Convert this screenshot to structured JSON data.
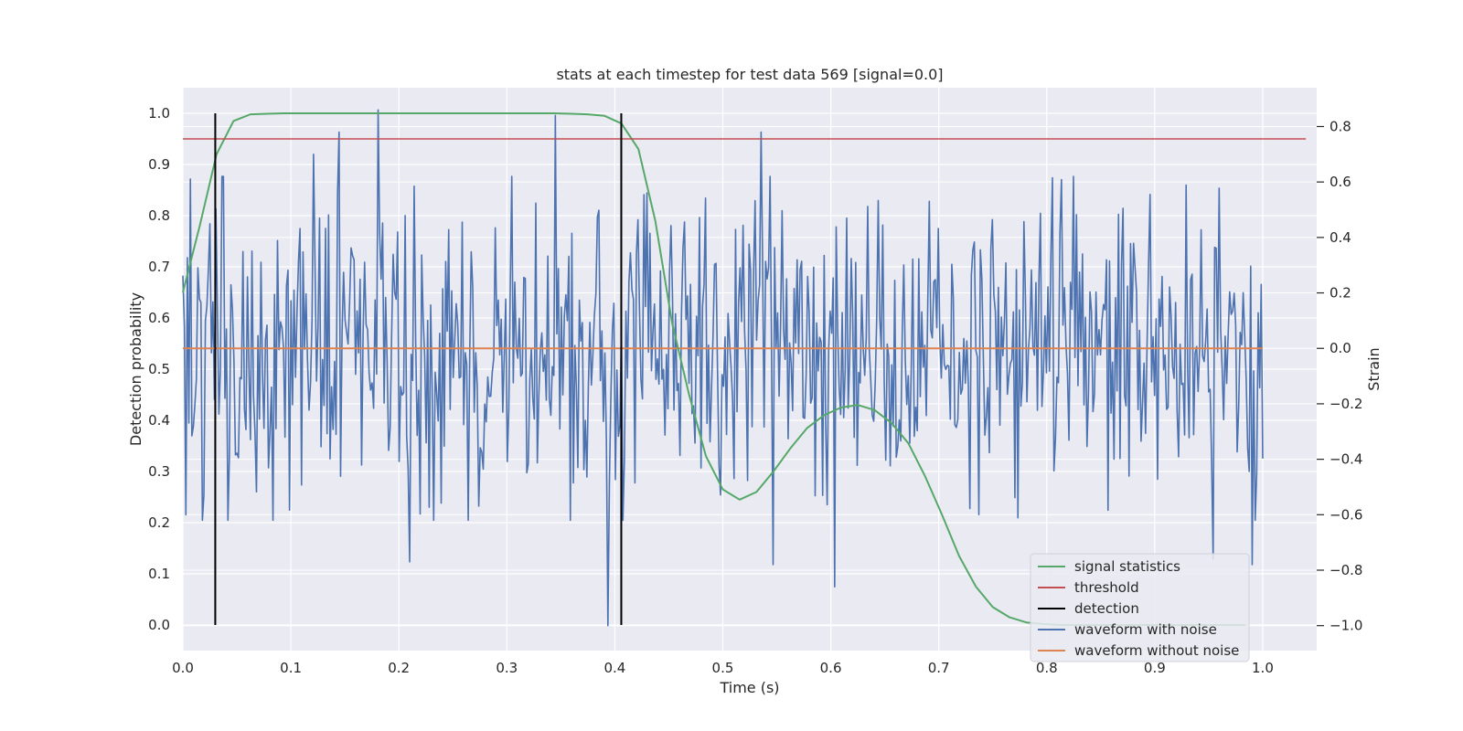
{
  "chart_data": {
    "type": "line",
    "title": "stats at each timestep for test data 569 [signal=0.0]",
    "xlabel": "Time (s)",
    "ylabel": "Detection probability",
    "y2label": "Strain",
    "xlim": [
      0.0,
      1.05
    ],
    "ylim": [
      -0.05,
      1.05
    ],
    "y2lim": [
      -1.09,
      0.94
    ],
    "xticks": [
      0.0,
      0.1,
      0.2,
      0.3,
      0.4,
      0.5,
      0.6,
      0.7,
      0.8,
      0.9,
      1.0
    ],
    "xtick_labels": [
      "0.0",
      "0.1",
      "0.2",
      "0.3",
      "0.4",
      "0.5",
      "0.6",
      "0.7",
      "0.8",
      "0.9",
      "1.0"
    ],
    "yticks": [
      0.0,
      0.1,
      0.2,
      0.3,
      0.4,
      0.5,
      0.6,
      0.7,
      0.8,
      0.9,
      1.0
    ],
    "ytick_labels": [
      "0.0",
      "0.1",
      "0.2",
      "0.3",
      "0.4",
      "0.5",
      "0.6",
      "0.7",
      "0.8",
      "0.9",
      "1.0"
    ],
    "y2ticks": [
      0.8,
      0.6,
      0.4,
      0.2,
      0.0,
      -0.2,
      -0.4,
      -0.6,
      -0.8,
      -1.0
    ],
    "y2tick_labels": [
      "0.8",
      "0.6",
      "0.4",
      "0.2",
      "0.0",
      "−0.2",
      "−0.4",
      "−0.6",
      "−0.8",
      "−1.0"
    ],
    "grid": true,
    "legend_position": "bottom-right",
    "colors": {
      "background": "#eaeaf2",
      "grid": "#ffffff",
      "signal_statistics": "#55a868",
      "threshold": "#c44e52",
      "detection": "#000000",
      "waveform_with_noise": "#4c72b0",
      "waveform_without_noise": "#dd8452"
    },
    "series": [
      {
        "name": "signal statistics",
        "axis": "left",
        "x": [
          0.0,
          0.0156,
          0.0312,
          0.0469,
          0.0625,
          0.0781,
          0.0938,
          0.1094,
          0.125,
          0.1562,
          0.1875,
          0.2188,
          0.25,
          0.2812,
          0.3125,
          0.3438,
          0.3594,
          0.375,
          0.3906,
          0.4062,
          0.4219,
          0.4375,
          0.4531,
          0.4688,
          0.4844,
          0.5,
          0.5156,
          0.5312,
          0.5469,
          0.5625,
          0.5781,
          0.5938,
          0.6094,
          0.625,
          0.6406,
          0.6562,
          0.6719,
          0.6875,
          0.7031,
          0.7188,
          0.7344,
          0.75,
          0.7656,
          0.7812,
          0.7969,
          0.8125,
          0.8438,
          0.875,
          0.9062,
          0.9375,
          0.9688,
          0.9844
        ],
        "values": [
          0.65,
          0.78,
          0.92,
          0.985,
          0.998,
          0.999,
          1.0,
          1.0,
          1.0,
          1.0,
          1.0,
          1.0,
          1.0,
          1.0,
          1.0,
          1.0,
          0.999,
          0.998,
          0.995,
          0.98,
          0.93,
          0.79,
          0.59,
          0.45,
          0.33,
          0.265,
          0.245,
          0.26,
          0.3,
          0.345,
          0.385,
          0.41,
          0.425,
          0.43,
          0.42,
          0.395,
          0.355,
          0.29,
          0.215,
          0.135,
          0.075,
          0.035,
          0.015,
          0.005,
          0.002,
          0.0,
          0.0,
          0.0,
          0.0,
          0.0,
          0.0,
          0.0
        ]
      },
      {
        "name": "threshold",
        "axis": "left",
        "x": [
          0.0,
          1.04
        ],
        "values": [
          0.95,
          0.95
        ]
      },
      {
        "name": "detection",
        "axis": "left",
        "type": "vlines",
        "x": [
          0.03,
          0.406
        ],
        "range": [
          0.0,
          1.0
        ]
      },
      {
        "name": "waveform with noise",
        "axis": "right",
        "x_range": [
          0.0,
          1.0
        ],
        "points": 720,
        "noise_std": 0.28,
        "peaks": [
          {
            "x": 0.181,
            "value": 0.86
          },
          {
            "x": 0.345,
            "value": 0.84
          },
          {
            "x": 0.145,
            "value": 0.78
          },
          {
            "x": 0.536,
            "value": 0.78
          },
          {
            "x": 0.954,
            "value": 0.69
          },
          {
            "x": 0.121,
            "value": 0.7
          },
          {
            "x": 0.393,
            "value": -1.0
          },
          {
            "x": 0.604,
            "value": -0.86
          },
          {
            "x": 0.21,
            "value": -0.77
          },
          {
            "x": 0.547,
            "value": -0.78
          },
          {
            "x": 0.954,
            "value": -0.76
          },
          {
            "x": 0.003,
            "value": -0.6
          },
          {
            "x": 0.99,
            "value": -0.78
          }
        ]
      },
      {
        "name": "waveform without noise",
        "axis": "right",
        "x": [
          0.0,
          1.0
        ],
        "values": [
          0.0,
          0.0
        ]
      }
    ]
  }
}
